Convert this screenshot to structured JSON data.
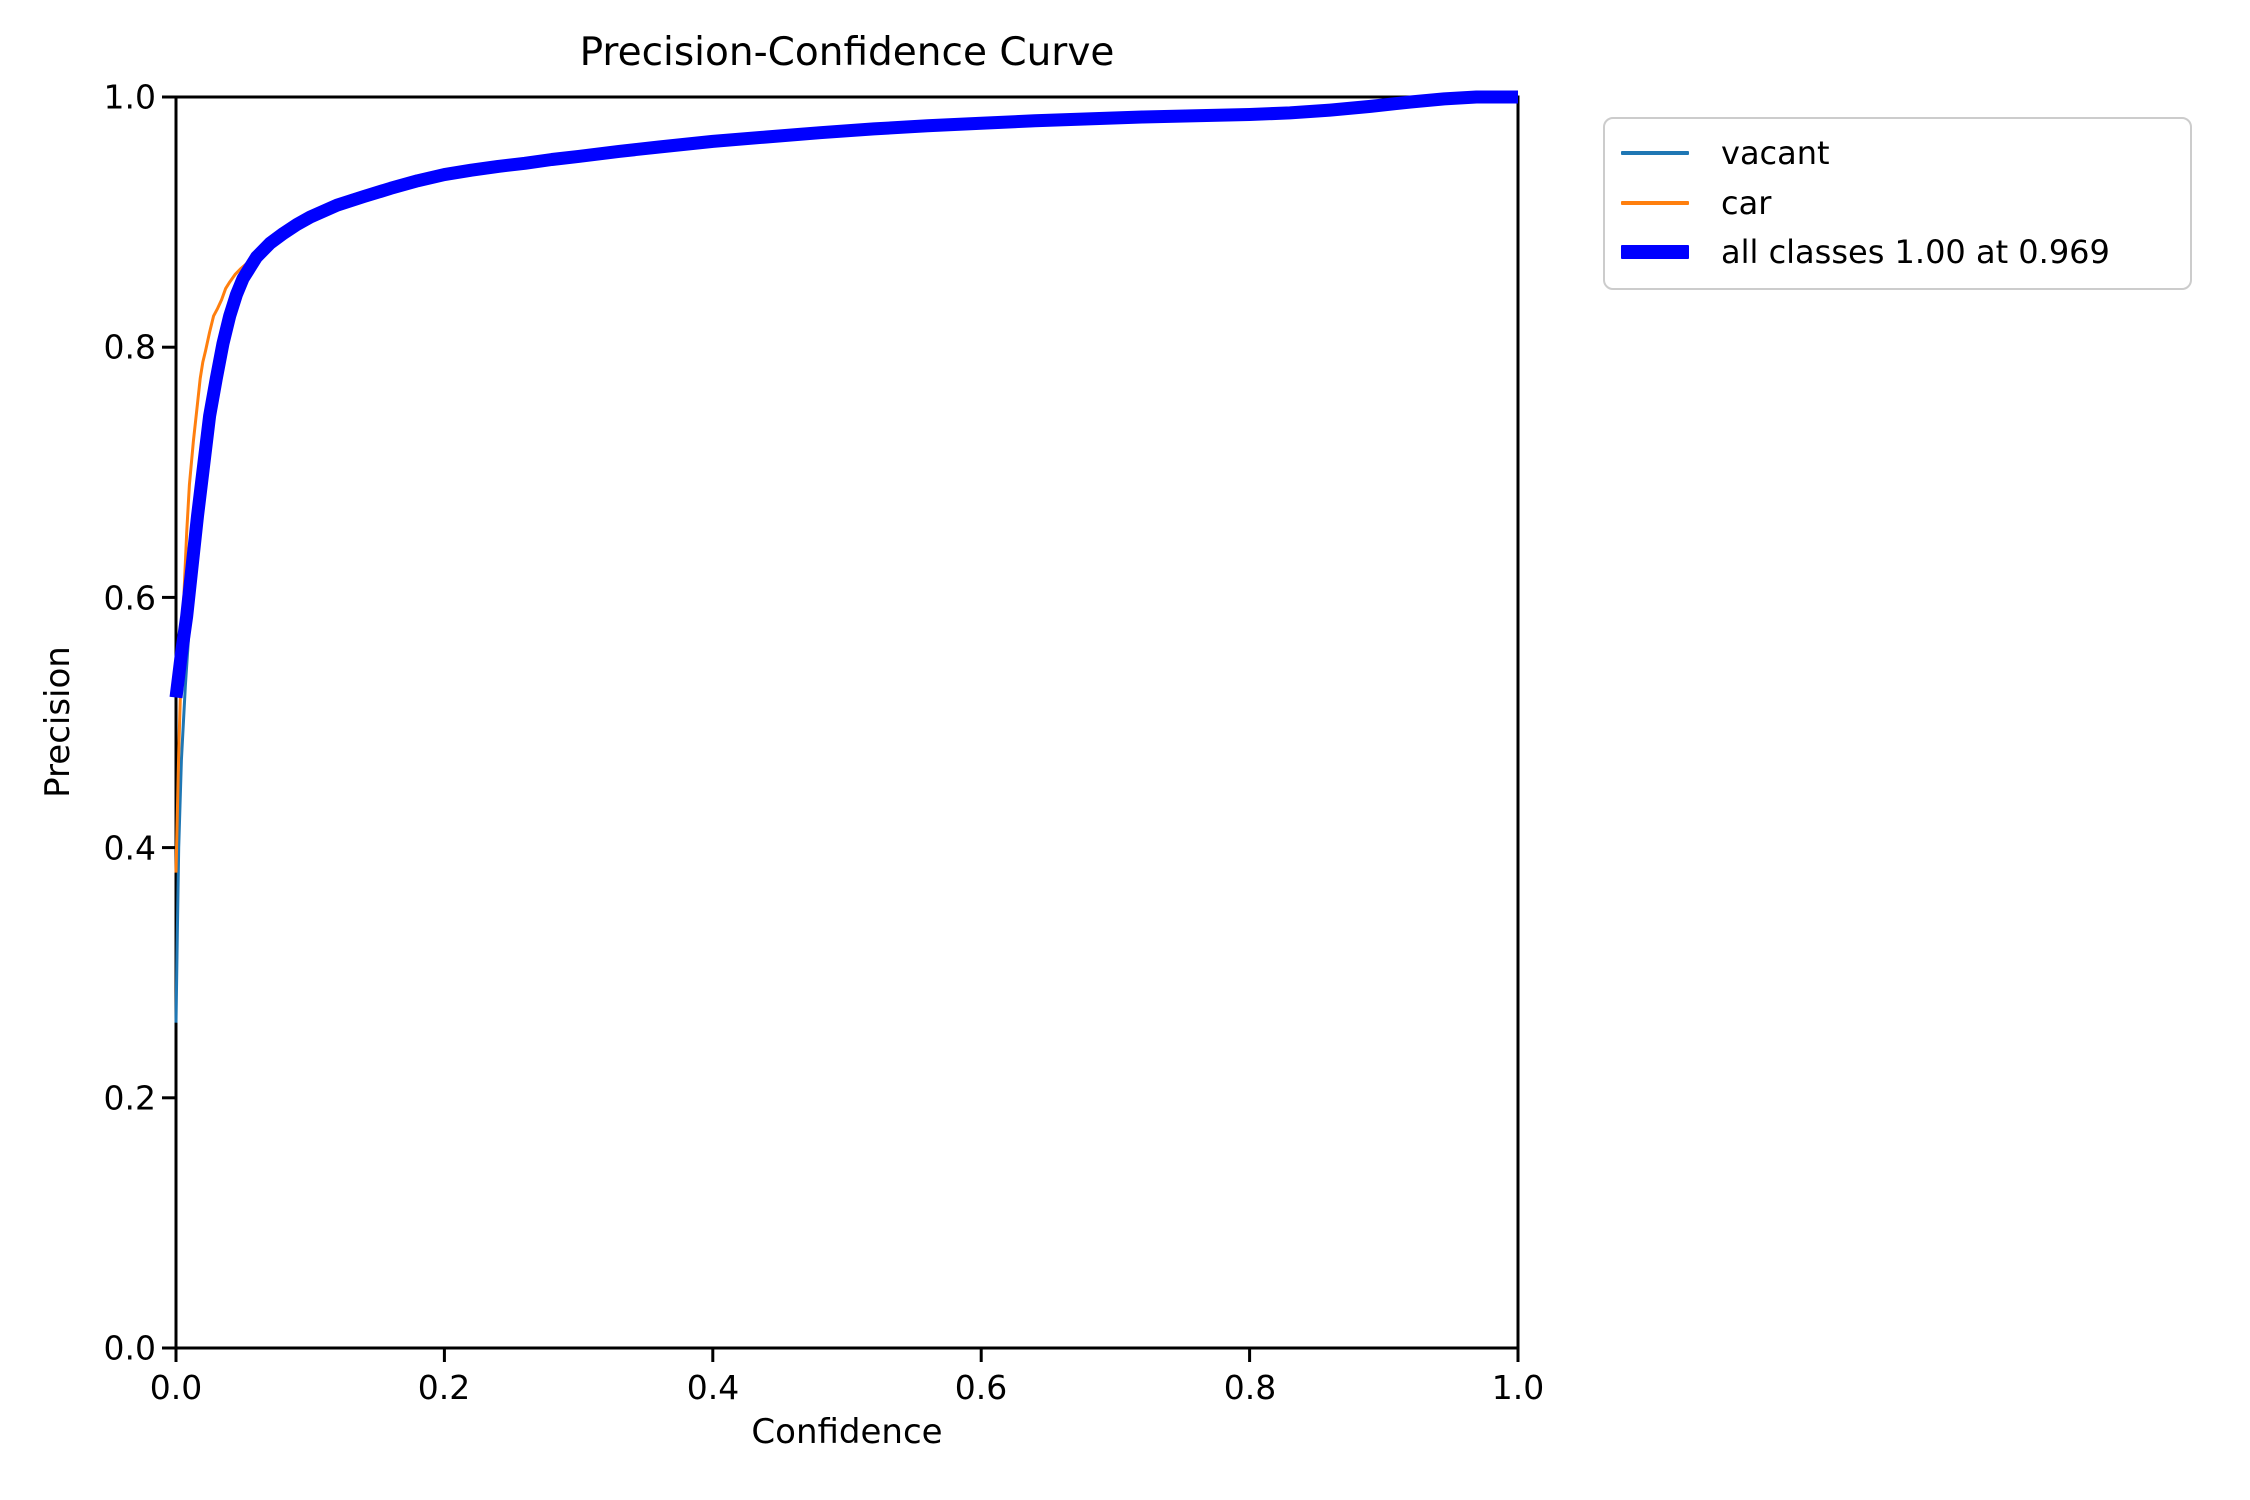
{
  "figure": {
    "background": "#ffffff",
    "text_color": "#000000",
    "spine_color": "#000000",
    "legend_border_color": "#cccccc"
  },
  "chart_data": {
    "type": "line",
    "title": "Precision-Confidence Curve",
    "xlabel": "Confidence",
    "ylabel": "Precision",
    "xlim": [
      0.0,
      1.0
    ],
    "ylim": [
      0.0,
      1.0
    ],
    "grid": false,
    "legend_position": "outside upper right",
    "xticks": [
      0.0,
      0.2,
      0.4,
      0.6,
      0.8,
      1.0
    ],
    "yticks": [
      0.0,
      0.2,
      0.4,
      0.6,
      0.8,
      1.0
    ],
    "xtick_labels": [
      "0.0",
      "0.2",
      "0.4",
      "0.6",
      "0.8",
      "1.0"
    ],
    "ytick_labels": [
      "0.0",
      "0.2",
      "0.4",
      "0.6",
      "0.8",
      "1.0"
    ],
    "annotation": "all classes reach precision 1.00 at confidence 0.969",
    "series": [
      {
        "name": "vacant",
        "color": "#1f77b4",
        "linewidth": 3,
        "points": [
          [
            0.0,
            0.26
          ],
          [
            0.001,
            0.33
          ],
          [
            0.002,
            0.4
          ],
          [
            0.004,
            0.47
          ],
          [
            0.007,
            0.53
          ],
          [
            0.01,
            0.578
          ],
          [
            0.013,
            0.62
          ],
          [
            0.016,
            0.658
          ],
          [
            0.02,
            0.698
          ],
          [
            0.025,
            0.738
          ],
          [
            0.03,
            0.77
          ],
          [
            0.035,
            0.798
          ],
          [
            0.04,
            0.821
          ],
          [
            0.045,
            0.839
          ],
          [
            0.05,
            0.853
          ],
          [
            0.06,
            0.871
          ],
          [
            0.07,
            0.8825
          ],
          [
            0.08,
            0.8905
          ],
          [
            0.09,
            0.8975
          ],
          [
            0.1,
            0.9045
          ],
          [
            0.11,
            0.9105
          ],
          [
            0.12,
            0.9165
          ],
          [
            0.13,
            0.921
          ],
          [
            0.14,
            0.9245
          ],
          [
            0.15,
            0.9268
          ],
          [
            0.16,
            0.9288
          ],
          [
            0.17,
            0.9308
          ],
          [
            0.18,
            0.9345
          ],
          [
            0.19,
            0.936
          ],
          [
            0.2,
            0.9385
          ],
          [
            0.22,
            0.942
          ],
          [
            0.24,
            0.9455
          ],
          [
            0.26,
            0.9475
          ],
          [
            0.28,
            0.9508
          ],
          [
            0.3,
            0.9535
          ],
          [
            0.33,
            0.9578
          ],
          [
            0.36,
            0.9608
          ],
          [
            0.4,
            0.9652
          ],
          [
            0.43,
            0.9675
          ],
          [
            0.46,
            0.9698
          ],
          [
            0.5,
            0.9738
          ],
          [
            0.53,
            0.9758
          ],
          [
            0.56,
            0.9778
          ],
          [
            0.6,
            0.9798
          ],
          [
            0.64,
            0.9808
          ],
          [
            0.68,
            0.9818
          ],
          [
            0.72,
            0.9832
          ],
          [
            0.76,
            0.9848
          ],
          [
            0.8,
            0.9858
          ],
          [
            0.83,
            0.9872
          ],
          [
            0.86,
            0.9892
          ],
          [
            0.89,
            0.9922
          ],
          [
            0.92,
            0.9958
          ],
          [
            0.945,
            0.9985
          ],
          [
            0.965,
            1.0
          ],
          [
            1.0,
            1.0
          ]
        ]
      },
      {
        "name": "car",
        "color": "#ff7f0e",
        "linewidth": 3,
        "points": [
          [
            0.0,
            0.38
          ],
          [
            0.002,
            0.475
          ],
          [
            0.004,
            0.55
          ],
          [
            0.006,
            0.605
          ],
          [
            0.008,
            0.652
          ],
          [
            0.01,
            0.69
          ],
          [
            0.013,
            0.725
          ],
          [
            0.016,
            0.755
          ],
          [
            0.018,
            0.775
          ],
          [
            0.02,
            0.788
          ],
          [
            0.022,
            0.797
          ],
          [
            0.025,
            0.812
          ],
          [
            0.028,
            0.825
          ],
          [
            0.031,
            0.831
          ],
          [
            0.034,
            0.838
          ],
          [
            0.037,
            0.847
          ],
          [
            0.04,
            0.852
          ],
          [
            0.044,
            0.858
          ],
          [
            0.048,
            0.8625
          ],
          [
            0.055,
            0.869
          ],
          [
            0.06,
            0.8745
          ],
          [
            0.07,
            0.8835
          ],
          [
            0.08,
            0.8905
          ],
          [
            0.09,
            0.896
          ],
          [
            0.1,
            0.9005
          ],
          [
            0.12,
            0.9095
          ],
          [
            0.14,
            0.9175
          ],
          [
            0.15,
            0.9225
          ],
          [
            0.16,
            0.9242
          ],
          [
            0.17,
            0.9272
          ],
          [
            0.18,
            0.9295
          ],
          [
            0.2,
            0.9358
          ],
          [
            0.21,
            0.9392
          ],
          [
            0.22,
            0.9408
          ],
          [
            0.24,
            0.9438
          ],
          [
            0.26,
            0.9462
          ],
          [
            0.28,
            0.9492
          ],
          [
            0.3,
            0.9515
          ],
          [
            0.33,
            0.956
          ],
          [
            0.36,
            0.959
          ],
          [
            0.38,
            0.9612
          ],
          [
            0.4,
            0.9652
          ],
          [
            0.42,
            0.9672
          ],
          [
            0.44,
            0.968
          ],
          [
            0.46,
            0.9698
          ],
          [
            0.48,
            0.971
          ],
          [
            0.5,
            0.9738
          ],
          [
            0.52,
            0.9745
          ],
          [
            0.55,
            0.9778
          ],
          [
            0.58,
            0.9792
          ],
          [
            0.6,
            0.9802
          ],
          [
            0.62,
            0.9812
          ],
          [
            0.65,
            0.9822
          ],
          [
            0.68,
            0.9832
          ],
          [
            0.7,
            0.9848
          ],
          [
            0.72,
            0.9852
          ],
          [
            0.74,
            0.9852
          ],
          [
            0.76,
            0.9845
          ],
          [
            0.78,
            0.9852
          ],
          [
            0.8,
            0.986
          ],
          [
            0.83,
            0.9872
          ],
          [
            0.86,
            0.989
          ],
          [
            0.88,
            0.991
          ],
          [
            0.9,
            0.9932
          ],
          [
            0.915,
            0.9942
          ],
          [
            0.925,
            0.9928
          ],
          [
            0.935,
            0.9952
          ],
          [
            0.95,
            0.9988
          ],
          [
            0.968,
            1.0
          ],
          [
            1.0,
            1.0
          ]
        ]
      },
      {
        "name": "all classes 1.00 at 0.969",
        "color": "#0000ff",
        "linewidth": 13,
        "points": [
          [
            0.0,
            0.52
          ],
          [
            0.004,
            0.555
          ],
          [
            0.008,
            0.585
          ],
          [
            0.012,
            0.625
          ],
          [
            0.016,
            0.665
          ],
          [
            0.02,
            0.7
          ],
          [
            0.025,
            0.745
          ],
          [
            0.03,
            0.775
          ],
          [
            0.035,
            0.803
          ],
          [
            0.04,
            0.825
          ],
          [
            0.045,
            0.842
          ],
          [
            0.05,
            0.855
          ],
          [
            0.06,
            0.872
          ],
          [
            0.07,
            0.883
          ],
          [
            0.08,
            0.891
          ],
          [
            0.09,
            0.898
          ],
          [
            0.1,
            0.904
          ],
          [
            0.12,
            0.9135
          ],
          [
            0.14,
            0.9205
          ],
          [
            0.16,
            0.927
          ],
          [
            0.18,
            0.933
          ],
          [
            0.2,
            0.938
          ],
          [
            0.22,
            0.9415
          ],
          [
            0.24,
            0.9445
          ],
          [
            0.26,
            0.947
          ],
          [
            0.28,
            0.95
          ],
          [
            0.3,
            0.9525
          ],
          [
            0.33,
            0.9565
          ],
          [
            0.36,
            0.96
          ],
          [
            0.4,
            0.9645
          ],
          [
            0.44,
            0.968
          ],
          [
            0.48,
            0.9715
          ],
          [
            0.52,
            0.9745
          ],
          [
            0.56,
            0.977
          ],
          [
            0.6,
            0.979
          ],
          [
            0.64,
            0.981
          ],
          [
            0.68,
            0.9825
          ],
          [
            0.72,
            0.984
          ],
          [
            0.76,
            0.985
          ],
          [
            0.8,
            0.986
          ],
          [
            0.83,
            0.9873
          ],
          [
            0.86,
            0.9895
          ],
          [
            0.89,
            0.9925
          ],
          [
            0.92,
            0.996
          ],
          [
            0.945,
            0.9985
          ],
          [
            0.969,
            1.0
          ],
          [
            1.0,
            1.0
          ]
        ]
      }
    ]
  },
  "legend": {
    "items": [
      {
        "label": "vacant",
        "color": "#1f77b4",
        "style": "thin"
      },
      {
        "label": "car",
        "color": "#ff7f0e",
        "style": "thin"
      },
      {
        "label": "all classes 1.00 at 0.969",
        "color": "#0000ff",
        "style": "thick"
      }
    ]
  }
}
